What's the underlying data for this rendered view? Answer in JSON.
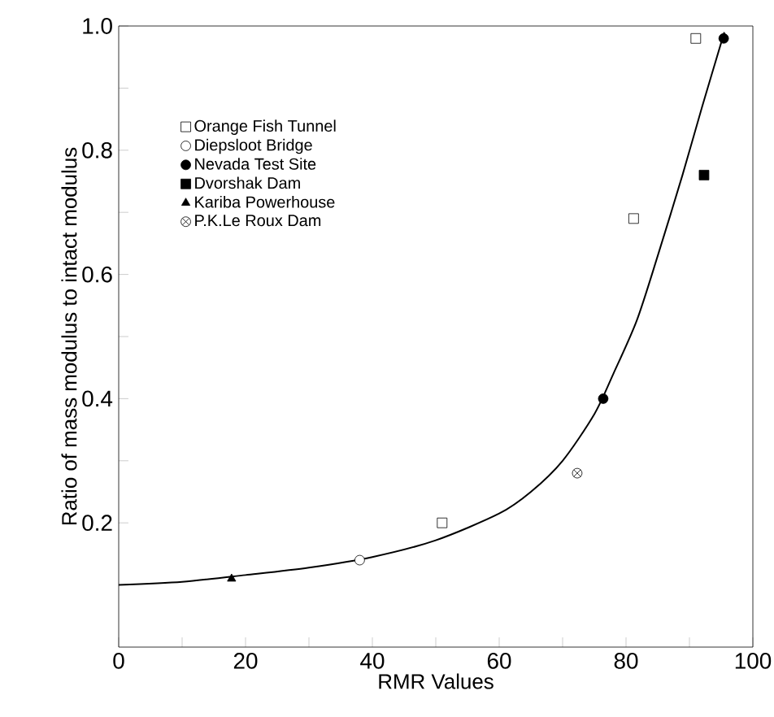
{
  "chart_data": {
    "type": "scatter",
    "xlabel": "RMR Values",
    "ylabel": "Ratio of mass modulus to intact modulus",
    "xlim": [
      0,
      100
    ],
    "ylim": [
      0,
      1
    ],
    "xticks": [
      0,
      {
        "value": 10,
        "label": null
      },
      20,
      {
        "value": 30,
        "label": null
      },
      40,
      {
        "value": 50,
        "label": null
      },
      60,
      {
        "value": 70,
        "label": null
      },
      80,
      {
        "value": 90,
        "label": null
      },
      100
    ],
    "yticks": [
      {
        "value": 0.1,
        "label": null
      },
      {
        "value": 0.2,
        "label": "0.2"
      },
      {
        "value": 0.3,
        "label": null
      },
      {
        "value": 0.4,
        "label": "0.4"
      },
      {
        "value": 0.5,
        "label": null
      },
      {
        "value": 0.6,
        "label": "0.6"
      },
      {
        "value": 0.7,
        "label": null
      },
      {
        "value": 0.8,
        "label": "0.8"
      },
      {
        "value": 0.9,
        "label": null
      },
      {
        "value": 1.0,
        "label": "1.0"
      }
    ],
    "legend": "top left",
    "grid": false,
    "series": [
      {
        "name": "Orange Fish Tunnel",
        "color": "#ffffff",
        "marker": "square",
        "x": [
          51,
          81.2,
          91
        ],
        "values": [
          0.2,
          0.69,
          0.98
        ]
      },
      {
        "name": "Diepsloot Bridge",
        "color": "#ffffff",
        "marker": "circle",
        "x": [
          38
        ],
        "values": [
          0.14
        ]
      },
      {
        "name": "Nevada Test Site",
        "color": "#000000",
        "marker": "circle",
        "x": [
          76.4,
          95.4
        ],
        "values": [
          0.4,
          0.98
        ]
      },
      {
        "name": "Dvorshak Dam",
        "color": "#000000",
        "marker": "square",
        "x": [
          92.3
        ],
        "values": [
          0.76
        ]
      },
      {
        "name": "Kariba Powerhouse",
        "color": "#000000",
        "marker": "triangle",
        "x": [
          17.8
        ],
        "values": [
          0.11
        ]
      },
      {
        "name": "P.K.Le Roux Dam",
        "color": "#ffffff",
        "marker": "cross",
        "x": [
          72.3
        ],
        "values": [
          0.28
        ]
      },
      {
        "type": "line",
        "color": "#000000",
        "marker": "none",
        "line_style": "solid",
        "x": [
          0,
          10,
          20,
          30,
          40,
          50,
          60,
          65,
          70,
          75,
          78,
          81.7,
          85,
          88.9,
          92,
          95.5
        ],
        "values": [
          0.1,
          0.105,
          0.116,
          0.128,
          0.145,
          0.172,
          0.215,
          0.25,
          0.3,
          0.375,
          0.44,
          0.526,
          0.63,
          0.76,
          0.87,
          0.99
        ]
      }
    ]
  }
}
